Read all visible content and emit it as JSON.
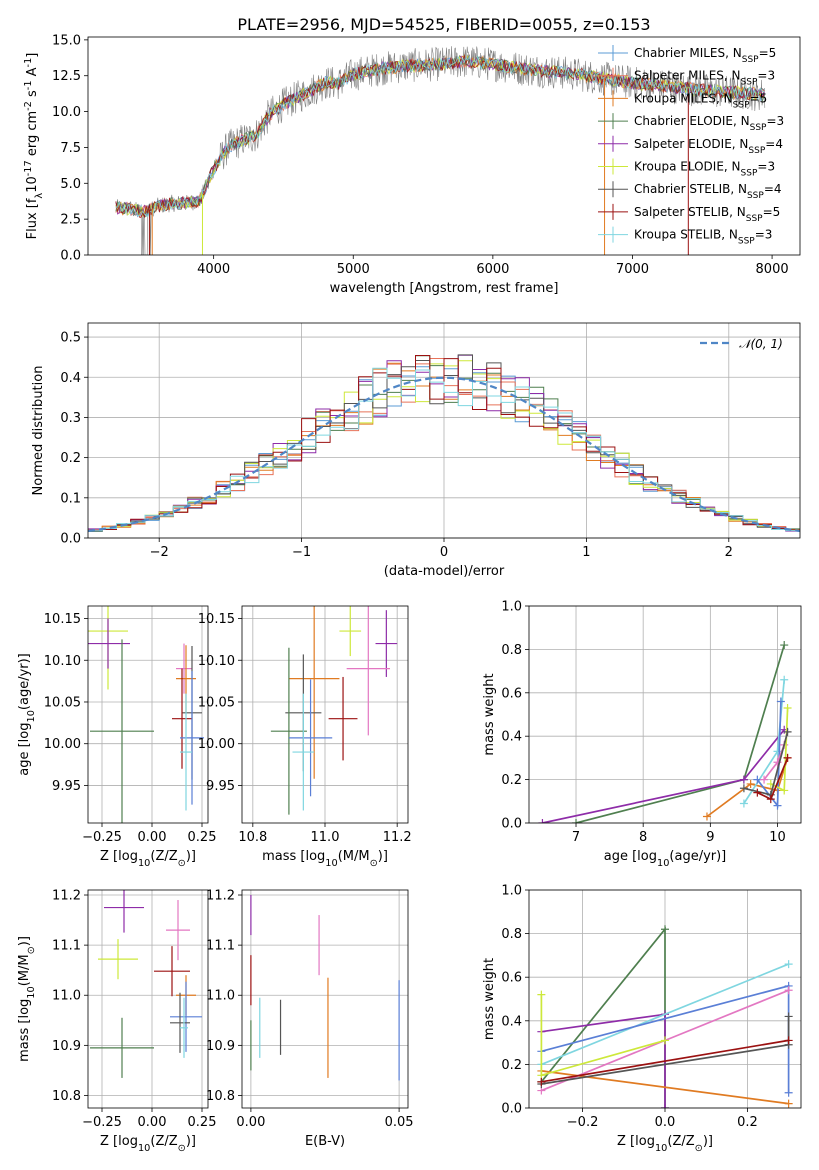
{
  "series": [
    {
      "name": "Chabrier MILES, N$_{SSP}$=5",
      "color": "#5b9bd5",
      "color2": "#1f77b4"
    },
    {
      "name": "Salpeter MILES, N$_{SSP}$=3",
      "color": "#e8735a"
    },
    {
      "name": "Kroupa MILES, N$_{SSP}$=5",
      "color": "#e07b22"
    },
    {
      "name": "Chabrier ELODIE, N$_{SSP}$=3",
      "color": "#4f7f4f"
    },
    {
      "name": "Salpeter ELODIE, N$_{SSP}$=4",
      "color": "#8e2ca8"
    },
    {
      "name": "Kroupa ELODIE, N$_{SSP}$=3",
      "color": "#cde83a"
    },
    {
      "name": "Chabrier STELIB, N$_{SSP}$=4",
      "color": "#555555"
    },
    {
      "name": "Salpeter STELIB, N$_{SSP}$=5",
      "color": "#9b1111"
    },
    {
      "name": "Kroupa STELIB, N$_{SSP}$=3",
      "color": "#7fd6e0"
    }
  ],
  "extra_colors": {
    "pink": "#e377c2",
    "blue": "#5a7fd6"
  },
  "chart_data": [
    {
      "type": "line",
      "id": "spectrum",
      "title": "PLATE=2956, MJD=54525, FIBERID=0055, z=0.153",
      "xlabel": "wavelength [Angstrom, rest frame]",
      "ylabel": "Flux [f$_\\lambda$10$^{-17}$ erg cm$^{-2}$ s$^{-1}$ A$^{-1}$]",
      "xlim": [
        3100,
        8200
      ],
      "ylim": [
        0,
        15.2
      ],
      "xticks": [
        4000,
        5000,
        6000,
        7000,
        8000
      ],
      "yticks": [
        0.0,
        2.5,
        5.0,
        7.5,
        10.0,
        12.5,
        15.0
      ],
      "data_color": "#7f7f7f",
      "continuum": {
        "x": [
          3300,
          3400,
          3500,
          3600,
          3700,
          3800,
          3900,
          4000,
          4100,
          4200,
          4300,
          4400,
          4500,
          4600,
          4700,
          4800,
          4900,
          5000,
          5200,
          5400,
          5600,
          5800,
          6000,
          6200,
          6400,
          6600,
          6800,
          7000,
          7200,
          7400,
          7600,
          7800,
          7900
        ],
        "y": [
          3.3,
          3.2,
          3.0,
          3.4,
          3.6,
          3.6,
          3.8,
          6.0,
          7.5,
          8.0,
          8.3,
          9.8,
          10.5,
          11.0,
          11.5,
          12.0,
          12.0,
          12.6,
          13.0,
          13.2,
          13.3,
          13.5,
          13.3,
          13.0,
          12.8,
          12.6,
          12.3,
          12.0,
          11.8,
          11.6,
          11.4,
          11.3,
          11.2
        ]
      },
      "legend": "upper right"
    },
    {
      "type": "bar",
      "id": "residual-histogram",
      "xlabel": "(data-model)/error",
      "ylabel": "Normed distribution",
      "xlim": [
        -2.5,
        2.5
      ],
      "ylim": [
        0,
        0.535
      ],
      "xticks": [
        -2,
        -1,
        0,
        1,
        2
      ],
      "yticks": [
        0.0,
        0.1,
        0.2,
        0.3,
        0.4,
        0.5
      ],
      "bin_width": 0.1,
      "reference_curve": {
        "label": "$\\mathcal{N}(0, 1)$",
        "mean": 0,
        "sigma": 1
      },
      "legend": "upper right"
    },
    {
      "type": "scatter",
      "id": "age-vs-metallicity",
      "xlabel": "Z [log$_{10}$(Z/Z$_\\odot$)]",
      "ylabel": "age  [log$_{10}$(age/yr)]",
      "xlim": [
        -0.32,
        0.28
      ],
      "ylim": [
        9.905,
        10.165
      ],
      "xticks": [
        -0.25,
        0.0,
        0.25
      ],
      "yticks": [
        9.95,
        10.0,
        10.05,
        10.1,
        10.15
      ],
      "points": [
        {
          "x": -0.22,
          "y": 10.135,
          "xerr": 0.1,
          "yerr": 0.07,
          "c": "#cde83a"
        },
        {
          "x": -0.22,
          "y": 10.12,
          "xerr": 0.11,
          "yerr": 0.03,
          "c": "#8e2ca8"
        },
        {
          "x": 0.16,
          "y": 10.09,
          "xerr": 0.04,
          "yerr": 0.03,
          "c": "#e377c2"
        },
        {
          "x": 0.17,
          "y": 10.078,
          "xerr": 0.05,
          "yerr": 0.04,
          "c": "#e07b22"
        },
        {
          "x": 0.2,
          "y": 10.037,
          "xerr": 0.05,
          "yerr": 0.08,
          "c": "#555555"
        },
        {
          "x": 0.15,
          "y": 10.03,
          "xerr": 0.05,
          "yerr": 0.06,
          "c": "#9b1111"
        },
        {
          "x": -0.15,
          "y": 10.015,
          "xerr": 0.16,
          "yerr": 0.11,
          "c": "#4f7f4f"
        },
        {
          "x": 0.2,
          "y": 10.007,
          "xerr": 0.06,
          "yerr": 0.08,
          "c": "#5a7fd6"
        },
        {
          "x": 0.17,
          "y": 9.99,
          "xerr": 0.03,
          "yerr": 0.07,
          "c": "#7fd6e0"
        }
      ]
    },
    {
      "type": "scatter",
      "id": "age-vs-mass",
      "xlabel": "mass [log$_{10}$(M/M$_\\odot$)]",
      "ylabel": "",
      "xlim": [
        10.77,
        11.23
      ],
      "ylim": [
        9.905,
        10.165
      ],
      "xticks": [
        10.8,
        11.0,
        11.2
      ],
      "yticks": [
        9.95,
        10.0,
        10.05,
        10.1,
        10.15
      ],
      "points": [
        {
          "x": 11.07,
          "y": 10.135,
          "xerr": 0.03,
          "yerr": 0.03,
          "c": "#cde83a"
        },
        {
          "x": 11.17,
          "y": 10.12,
          "xerr": 0.03,
          "yerr": 0.04,
          "c": "#8e2ca8"
        },
        {
          "x": 11.12,
          "y": 10.09,
          "xerr": 0.06,
          "yerr": 0.08,
          "c": "#e377c2"
        },
        {
          "x": 10.97,
          "y": 10.078,
          "xerr": 0.07,
          "yerr": 0.12,
          "c": "#e07b22"
        },
        {
          "x": 10.94,
          "y": 10.037,
          "xerr": 0.05,
          "yerr": 0.07,
          "c": "#555555"
        },
        {
          "x": 11.05,
          "y": 10.03,
          "xerr": 0.04,
          "yerr": 0.05,
          "c": "#9b1111"
        },
        {
          "x": 10.9,
          "y": 10.015,
          "xerr": 0.05,
          "yerr": 0.1,
          "c": "#4f7f4f"
        },
        {
          "x": 10.96,
          "y": 10.007,
          "xerr": 0.06,
          "yerr": 0.07,
          "c": "#5a7fd6"
        },
        {
          "x": 10.94,
          "y": 9.99,
          "xerr": 0.03,
          "yerr": 0.07,
          "c": "#7fd6e0"
        }
      ]
    },
    {
      "type": "line",
      "id": "weight-vs-age",
      "xlabel": "age  [log$_{10}$(age/yr)]",
      "ylabel": "mass weight",
      "xlim": [
        6.3,
        10.35
      ],
      "ylim": [
        0,
        1.0
      ],
      "xticks": [
        7,
        8,
        9,
        10
      ],
      "yticks": [
        0.0,
        0.2,
        0.4,
        0.6,
        0.8,
        1.0
      ],
      "lines": [
        {
          "c": "#4f7f4f",
          "x": [
            7.0,
            9.5,
            10.1
          ],
          "y": [
            0.0,
            0.2,
            0.82
          ]
        },
        {
          "c": "#8e2ca8",
          "x": [
            6.5,
            9.5,
            10.1
          ],
          "y": [
            0.0,
            0.2,
            0.43
          ]
        },
        {
          "c": "#e07b22",
          "x": [
            8.95,
            9.6,
            10.0,
            10.15
          ],
          "y": [
            0.03,
            0.18,
            0.15,
            0.3
          ]
        },
        {
          "c": "#7fd6e0",
          "x": [
            9.5,
            10.0,
            10.1
          ],
          "y": [
            0.09,
            0.33,
            0.66
          ]
        },
        {
          "c": "#5a7fd6",
          "x": [
            9.7,
            10.0,
            10.05
          ],
          "y": [
            0.2,
            0.08,
            0.56
          ]
        },
        {
          "c": "#e377c2",
          "x": [
            9.8,
            10.0,
            10.1
          ],
          "y": [
            0.2,
            0.28,
            0.36
          ]
        },
        {
          "c": "#cde83a",
          "x": [
            9.9,
            10.1,
            10.15
          ],
          "y": [
            0.18,
            0.15,
            0.53
          ]
        },
        {
          "c": "#555555",
          "x": [
            9.5,
            9.9,
            10.15
          ],
          "y": [
            0.16,
            0.13,
            0.42
          ]
        },
        {
          "c": "#9b1111",
          "x": [
            9.7,
            9.9,
            10.15
          ],
          "y": [
            0.14,
            0.11,
            0.3
          ]
        }
      ]
    },
    {
      "type": "scatter",
      "id": "mass-vs-metallicity",
      "xlabel": "Z [log$_{10}$(Z/Z$_\\odot$)]",
      "ylabel": "mass [log$_{10}$(M/M$_\\odot$)]",
      "xlim": [
        -0.32,
        0.28
      ],
      "ylim": [
        10.775,
        11.21
      ],
      "xticks": [
        -0.25,
        0.0,
        0.25
      ],
      "yticks": [
        10.8,
        10.9,
        11.0,
        11.1,
        11.2
      ],
      "points": [
        {
          "x": -0.14,
          "y": 11.175,
          "xerr": 0.1,
          "yerr": 0.05,
          "c": "#8e2ca8"
        },
        {
          "x": 0.13,
          "y": 11.13,
          "xerr": 0.06,
          "yerr": 0.06,
          "c": "#e377c2"
        },
        {
          "x": -0.17,
          "y": 11.072,
          "xerr": 0.1,
          "yerr": 0.04,
          "c": "#cde83a"
        },
        {
          "x": 0.1,
          "y": 11.048,
          "xerr": 0.09,
          "yerr": 0.05,
          "c": "#9b1111"
        },
        {
          "x": 0.17,
          "y": 11.0,
          "xerr": 0.05,
          "yerr": 0.04,
          "c": "#e07b22"
        },
        {
          "x": 0.17,
          "y": 10.957,
          "xerr": 0.08,
          "yerr": 0.07,
          "c": "#5a7fd6"
        },
        {
          "x": 0.14,
          "y": 10.945,
          "xerr": 0.05,
          "yerr": 0.06,
          "c": "#555555"
        },
        {
          "x": 0.16,
          "y": 10.935,
          "xerr": 0.02,
          "yerr": 0.06,
          "c": "#7fd6e0"
        },
        {
          "x": -0.15,
          "y": 10.895,
          "xerr": 0.16,
          "yerr": 0.06,
          "c": "#4f7f4f"
        }
      ]
    },
    {
      "type": "scatter",
      "id": "mass-vs-extinction",
      "xlabel": "E(B-V)",
      "ylabel": "",
      "xlim": [
        -0.003,
        0.053
      ],
      "ylim": [
        10.775,
        11.21
      ],
      "xticks": [
        0.0,
        0.05
      ],
      "yticks": [
        10.8,
        10.9,
        11.0,
        11.1,
        11.2
      ],
      "points": [
        {
          "x": 0.0,
          "y": 11.16,
          "xerr": 0,
          "yerr": 0.04,
          "c": "#8e2ca8"
        },
        {
          "x": 0.023,
          "y": 11.1,
          "xerr": 0,
          "yerr": 0.06,
          "c": "#e377c2"
        },
        {
          "x": 0.0,
          "y": 11.03,
          "xerr": 0,
          "yerr": 0.05,
          "c": "#9b1111"
        },
        {
          "x": 0.01,
          "y": 10.936,
          "xerr": 0,
          "yerr": 0.055,
          "c": "#555555"
        },
        {
          "x": 0.003,
          "y": 10.935,
          "xerr": 0,
          "yerr": 0.06,
          "c": "#7fd6e0"
        },
        {
          "x": 0.0,
          "y": 10.9,
          "xerr": 0,
          "yerr": 0.05,
          "c": "#4f7f4f"
        },
        {
          "x": 0.026,
          "y": 10.935,
          "xerr": 0,
          "yerr": 0.1,
          "c": "#e07b22"
        },
        {
          "x": 0.05,
          "y": 10.93,
          "xerr": 0,
          "yerr": 0.1,
          "c": "#5a7fd6"
        }
      ]
    },
    {
      "type": "line",
      "id": "weight-vs-metallicity",
      "xlabel": "Z [log$_{10}$(Z/Z$_\\odot$)]",
      "ylabel": "mass weight",
      "xlim": [
        -0.33,
        0.33
      ],
      "ylim": [
        0,
        1.0
      ],
      "xticks": [
        -0.2,
        0.0,
        0.2
      ],
      "yticks": [
        0.0,
        0.2,
        0.4,
        0.6,
        0.8,
        1.0
      ],
      "lines": [
        {
          "c": "#4f7f4f",
          "x": [
            -0.3,
            0.0,
            0.0
          ],
          "y": [
            0.12,
            0.82,
            0.0
          ]
        },
        {
          "c": "#8e2ca8",
          "x": [
            -0.3,
            0.0,
            0.0
          ],
          "y": [
            0.35,
            0.43,
            0.0
          ]
        },
        {
          "c": "#e07b22",
          "x": [
            -0.3,
            0.3
          ],
          "y": [
            0.17,
            0.02
          ]
        },
        {
          "c": "#7fd6e0",
          "x": [
            -0.3,
            0.3
          ],
          "y": [
            0.2,
            0.66
          ]
        },
        {
          "c": "#5a7fd6",
          "x": [
            -0.3,
            0.3,
            0.3
          ],
          "y": [
            0.26,
            0.56,
            0.07
          ]
        },
        {
          "c": "#e377c2",
          "x": [
            -0.3,
            0.3
          ],
          "y": [
            0.08,
            0.54
          ]
        },
        {
          "c": "#cde83a",
          "x": [
            -0.3,
            -0.3,
            0.0
          ],
          "y": [
            0.52,
            0.15,
            0.31
          ]
        },
        {
          "c": "#555555",
          "x": [
            -0.3,
            0.3,
            0.3
          ],
          "y": [
            0.11,
            0.29,
            0.42
          ]
        },
        {
          "c": "#9b1111",
          "x": [
            -0.3,
            0.3
          ],
          "y": [
            0.12,
            0.31
          ]
        }
      ]
    }
  ]
}
